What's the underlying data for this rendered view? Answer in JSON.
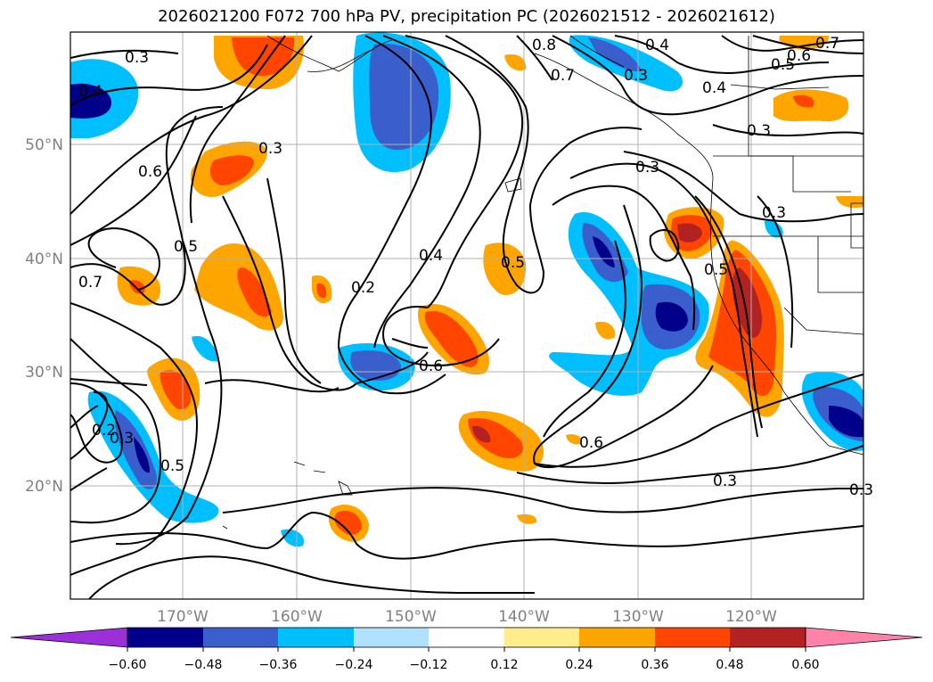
{
  "title": "2026021200 F072 700 hPa PV, precipitation PC (2026021512 - 2026021612)",
  "longitude_labels": [
    "170°W",
    "160°W",
    "150°W",
    "140°W",
    "130°W",
    "120°W"
  ],
  "latitude_labels": [
    "50°N",
    "40°N",
    "30°N",
    "20°N"
  ],
  "contour_labels": [
    "0.3",
    "0.4",
    "0.6",
    "0.5",
    "0.7",
    "0.3",
    "0.2",
    "0.4",
    "0.5",
    "0.6",
    "0.6",
    "0.3",
    "0.5",
    "0.2",
    "0.3",
    "0.8",
    "0.7",
    "0.4",
    "0.5",
    "0.6",
    "0.7",
    "0.3",
    "0.4",
    "0.3",
    "0.3",
    "0.5",
    "0.3",
    "0.3"
  ],
  "colorbar": {
    "tick_labels": [
      "−0.60",
      "−0.48",
      "−0.36",
      "−0.24",
      "−0.12",
      "0.12",
      "0.24",
      "0.36",
      "0.48",
      "0.60"
    ],
    "colors": [
      "#9b30d9",
      "#00008b",
      "#3a5fcd",
      "#00bfff",
      "#b0e2ff",
      "#ffffff",
      "#ffec8b",
      "#ffa500",
      "#ff4500",
      "#b22222",
      "#ff82ab"
    ]
  },
  "field_colors": {
    "neg_strong": "#00008b",
    "neg_mid": "#3a5fcd",
    "neg_weak": "#00bfff",
    "neg_faint": "#b0e2ff",
    "pos_faint": "#ffec8b",
    "pos_weak": "#ffa500",
    "pos_mid": "#ff4500",
    "pos_strong": "#b22222"
  }
}
